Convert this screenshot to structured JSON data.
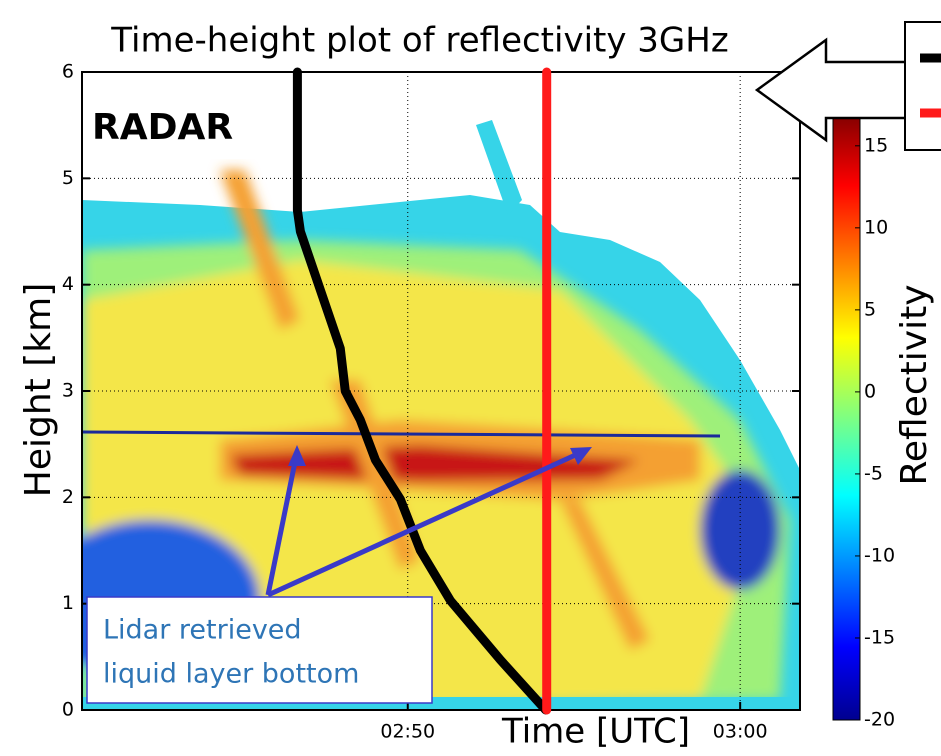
{
  "chart_data": {
    "type": "line",
    "title": "Time-height plot of reflectivity 3GHz",
    "y_label": "Height [km]",
    "x_label": "Time [UTC]",
    "xlim": [
      40.2,
      61.8
    ],
    "xticks": [
      {
        "value": 50,
        "label": "02:50"
      },
      {
        "value": 60,
        "label": "03:00"
      }
    ],
    "ylim": [
      0,
      6
    ],
    "yticks": [
      0,
      1,
      2,
      3,
      4,
      5,
      6
    ],
    "grid": true,
    "series": [
      {
        "color": "#000000",
        "x": [
          46.68,
          46.68,
          46.77,
          47.37,
          47.97,
          48.12,
          48.57,
          49.03,
          49.78,
          50.38,
          51.28,
          52.79,
          54.15
        ],
        "values": [
          6,
          4.7,
          4.5,
          3.95,
          3.4,
          3.0,
          2.73,
          2.35,
          1.98,
          1.5,
          1.03,
          0.47,
          0
        ]
      },
      {
        "color": "#ff1a1a",
        "x": [
          54.18,
          54.18
        ],
        "values": [
          0,
          6
        ]
      }
    ],
    "colorbar": {
      "label": "Reflectivity",
      "lim": [
        -20,
        17
      ],
      "ticks": [
        -20,
        -15,
        -10,
        -5,
        0,
        5,
        10,
        15
      ]
    },
    "annotations": {
      "radar": "RADAR",
      "lidar": [
        "Lidar retrieved",
        "liquid layer bottom"
      ]
    }
  }
}
